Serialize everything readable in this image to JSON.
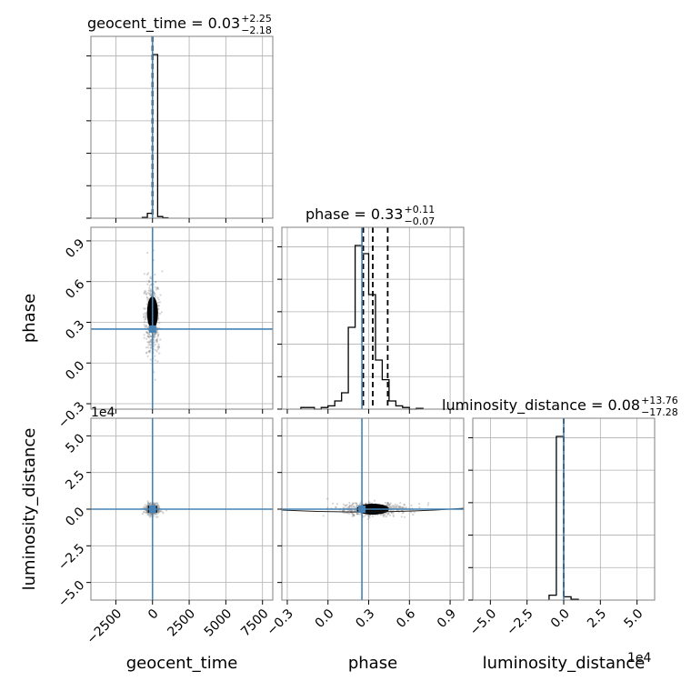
{
  "chart_data": {
    "type": "corner",
    "parameters": [
      "geocent_time",
      "phase",
      "luminosity_distance"
    ],
    "titles": [
      {
        "name": "geocent_time",
        "median": "0.03",
        "plus": "+2.25",
        "minus": "−2.18"
      },
      {
        "name": "phase",
        "median": "0.33",
        "plus": "+0.11",
        "minus": "−0.07"
      },
      {
        "name": "luminosity_distance",
        "median": "0.08",
        "plus": "+13.76",
        "minus": "−17.28"
      }
    ],
    "truths": {
      "geocent_time": 0,
      "phase": 0.25,
      "luminosity_distance": 0
    },
    "axes": {
      "geocent_time": {
        "lim": [
          -4200,
          8200
        ],
        "ticks": [
          -2500,
          0,
          2500,
          5000,
          7500
        ],
        "ticklabels": [
          "−2500",
          "0",
          "2500",
          "5000",
          "7500"
        ]
      },
      "phase": {
        "lim": [
          -0.34,
          1.0
        ],
        "ticks": [
          -0.3,
          0.0,
          0.3,
          0.6,
          0.9
        ],
        "ticklabels": [
          "−0.3",
          "0.0",
          "0.3",
          "0.6",
          "0.9"
        ]
      },
      "luminosity_distance": {
        "lim": [
          -6.2,
          6.2
        ],
        "ticks": [
          -5.0,
          -2.5,
          0.0,
          2.5,
          5.0
        ],
        "ticklabels": [
          "−5.0",
          "−2.5",
          "0.0",
          "2.5",
          "5.0"
        ],
        "offset": "1e4"
      }
    },
    "histograms": {
      "geocent_time": {
        "edges": [
          -700,
          -350,
          0,
          350,
          700,
          1050
        ],
        "counts": [
          0.005,
          0.03,
          1.0,
          0.01,
          0.003
        ]
      },
      "phase": {
        "edges": [
          -0.2,
          -0.15,
          -0.1,
          -0.05,
          0.0,
          0.05,
          0.1,
          0.15,
          0.2,
          0.25,
          0.3,
          0.35,
          0.4,
          0.45,
          0.5,
          0.55,
          0.6,
          0.65,
          0.7
        ],
        "counts": [
          0.01,
          0.01,
          0.0,
          0.01,
          0.02,
          0.05,
          0.1,
          0.5,
          1.0,
          0.95,
          0.7,
          0.3,
          0.18,
          0.05,
          0.02,
          0.01,
          0.0,
          0.005
        ]
      },
      "luminosity_distance": {
        "edges": [
          -1.0,
          -0.5,
          0.0,
          0.5,
          1.0
        ],
        "counts": [
          0.03,
          1.0,
          0.02,
          0.005
        ]
      }
    },
    "quantiles": {
      "geocent_time": [
        -2.15,
        0.03,
        2.28
      ],
      "phase": [
        0.26,
        0.33,
        0.44
      ],
      "luminosity_distance": [
        -17.2,
        0.08,
        13.84
      ]
    },
    "grid": true
  }
}
